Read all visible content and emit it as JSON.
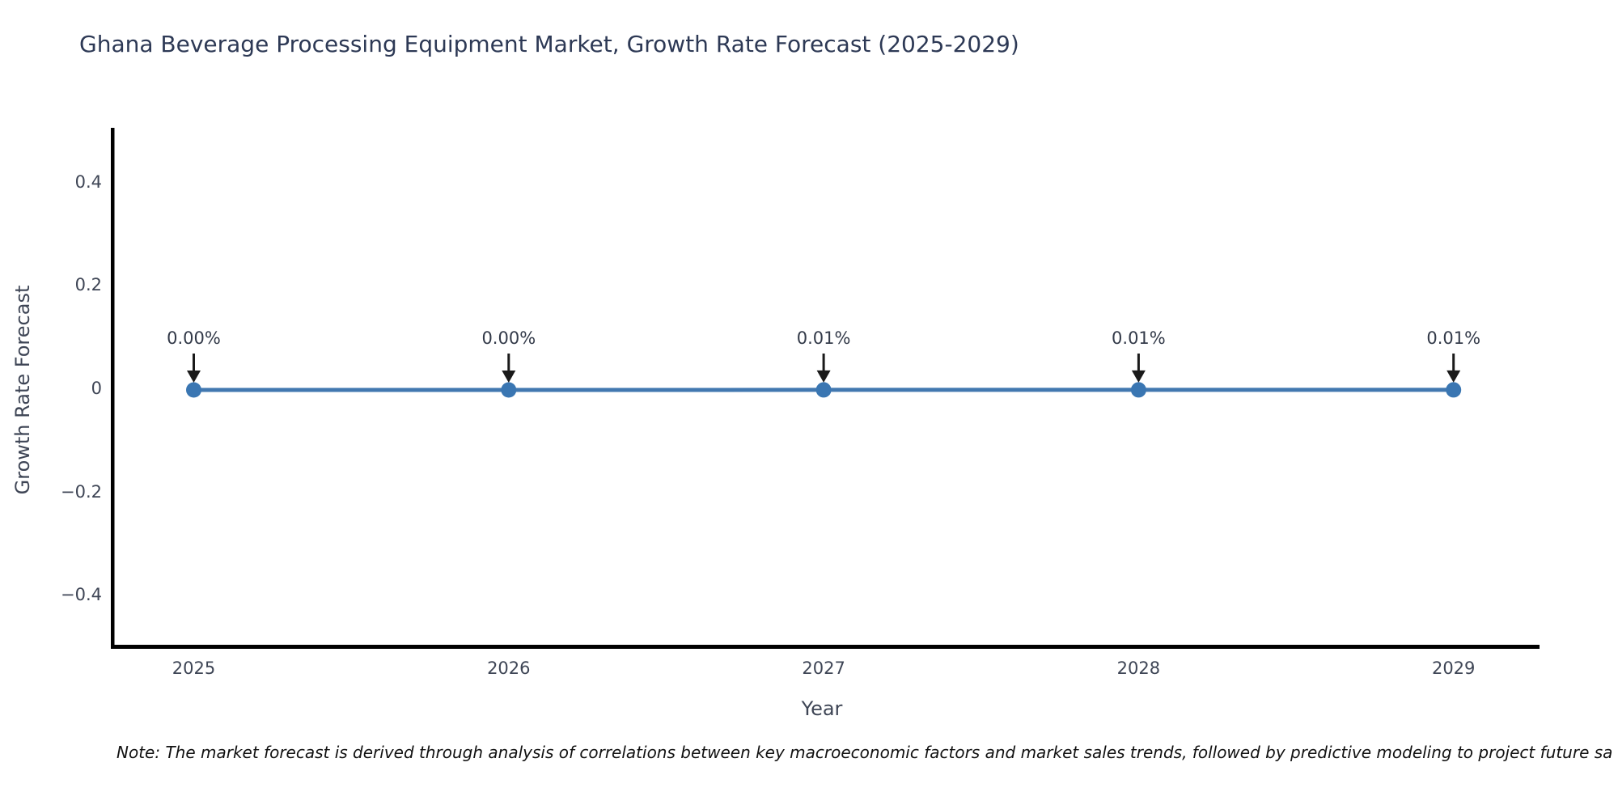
{
  "title": "Ghana Beverage Processing Equipment Market, Growth Rate Forecast (2025-2029)",
  "note": "Note: The market forecast is derived through analysis of correlations between key macroeconomic factors and market sales trends, followed by predictive modeling to project future sa",
  "colors": {
    "line": "#4278b0",
    "marker": "#3a76b2",
    "arrow": "#1a1a1a",
    "spine": "#000000",
    "title_text": "#2d3955",
    "axis_text": "#3e4555"
  },
  "chart_data": {
    "type": "line",
    "title": "Ghana Beverage Processing Equipment Market, Growth Rate Forecast (2025-2029)",
    "xlabel": "Year",
    "ylabel": "Growth Rate Forecast",
    "categories": [
      "2025",
      "2026",
      "2027",
      "2028",
      "2029"
    ],
    "values": [
      0.0,
      0.0,
      0.0001,
      0.0001,
      0.0001
    ],
    "point_labels": [
      "0.00%",
      "0.00%",
      "0.01%",
      "0.01%",
      "0.01%"
    ],
    "ytick_values": [
      0.4,
      0.2,
      0,
      -0.2,
      -0.4
    ],
    "ytick_labels": [
      "0.4",
      "0.2",
      "0",
      "−0.2",
      "−0.4"
    ],
    "ylim": [
      -0.5,
      0.51
    ],
    "grid": false,
    "legend_position": "none",
    "marker": "circle",
    "annotation_arrows": true
  }
}
